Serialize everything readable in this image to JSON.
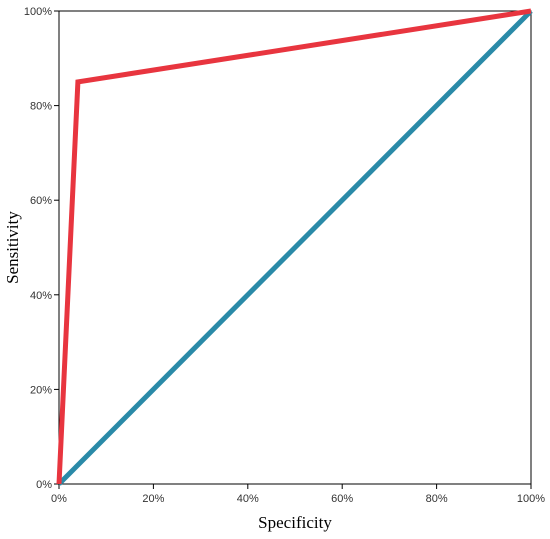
{
  "chart_data": {
    "type": "line",
    "xlabel": "Specificity",
    "ylabel": "Sensitivity",
    "xlim": [
      0,
      100
    ],
    "ylim": [
      0,
      100
    ],
    "x_ticks": [
      "0%",
      "20%",
      "40%",
      "60%",
      "80%",
      "100%"
    ],
    "y_ticks": [
      "0%",
      "20%",
      "40%",
      "60%",
      "80%",
      "100%"
    ],
    "x_tick_values": [
      0,
      20,
      40,
      60,
      80,
      100
    ],
    "y_tick_values": [
      0,
      20,
      40,
      60,
      80,
      100
    ],
    "grid": false,
    "series": [
      {
        "color": "#e8353f",
        "points": [
          [
            0,
            0
          ],
          [
            4,
            85
          ],
          [
            100,
            100
          ]
        ]
      },
      {
        "color": "#2a8aa8",
        "points": [
          [
            0,
            0
          ],
          [
            100,
            100
          ]
        ]
      }
    ]
  }
}
